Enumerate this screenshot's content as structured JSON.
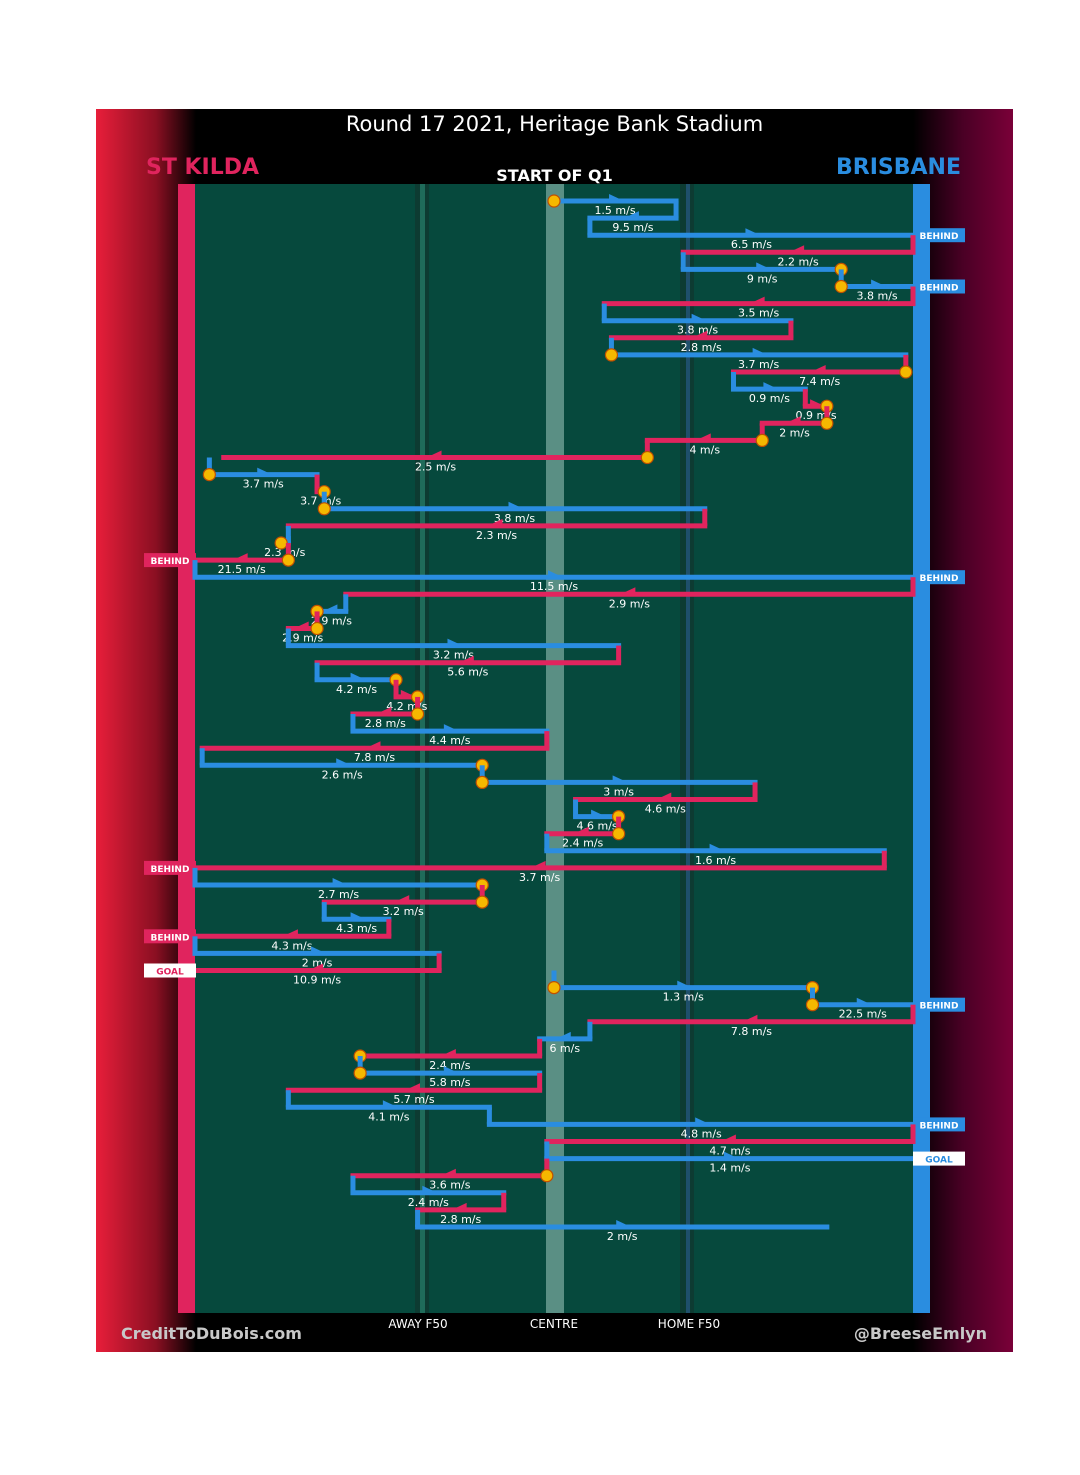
{
  "title": "Round 17 2021, Heritage Bank Stadium",
  "teams": {
    "left": "ST KILDA",
    "right": "BRISBANE"
  },
  "start_label": "START OF Q1",
  "credits": {
    "left": "CreditToDuBois.com",
    "right": "@BreeseEmlyn"
  },
  "colors": {
    "st_kilda": "#e0245e",
    "brisbane": "#2a8de0",
    "field": "#06493d",
    "stoppage": "#f5b800"
  },
  "chart_data": {
    "type": "line",
    "x_axis": {
      "ticks": [
        "AWAY F50",
        "CENTRE",
        "HOME F50"
      ]
    },
    "chains": [
      {
        "team": "brisbane",
        "from": 0.5,
        "to": 0.67,
        "speed": "1.5 m/s",
        "stoppage": "start"
      },
      {
        "team": "brisbane",
        "from": 0.67,
        "to": 0.55,
        "speed": "9.5 m/s"
      },
      {
        "team": "brisbane",
        "from": 0.55,
        "to": 1.0,
        "speed": "6.5 m/s",
        "end": "BEHIND"
      },
      {
        "team": "st_kilda",
        "from": 1.0,
        "to": 0.68,
        "speed": "2.2 m/s"
      },
      {
        "team": "brisbane",
        "from": 0.68,
        "to": 0.9,
        "speed": "9 m/s",
        "stoppage": "end"
      },
      {
        "team": "brisbane",
        "from": 0.9,
        "to": 1.0,
        "speed": "3.8 m/s",
        "stoppage": "start",
        "end": "BEHIND"
      },
      {
        "team": "st_kilda",
        "from": 1.0,
        "to": 0.57,
        "speed": "3.5 m/s"
      },
      {
        "team": "brisbane",
        "from": 0.57,
        "to": 0.83,
        "speed": "3.8 m/s"
      },
      {
        "team": "st_kilda",
        "from": 0.83,
        "to": 0.58,
        "speed": "2.8 m/s"
      },
      {
        "team": "brisbane",
        "from": 0.58,
        "to": 0.99,
        "speed": "3.7 m/s",
        "stoppage": "start"
      },
      {
        "team": "st_kilda",
        "from": 0.99,
        "to": 0.75,
        "speed": "7.4 m/s",
        "stoppage": "start"
      },
      {
        "team": "brisbane",
        "from": 0.75,
        "to": 0.85,
        "speed": "0.9 m/s"
      },
      {
        "team": "st_kilda",
        "from": 0.85,
        "to": 0.88,
        "speed": "0.9 m/s",
        "stoppage": "end"
      },
      {
        "team": "st_kilda",
        "from": 0.88,
        "to": 0.79,
        "speed": "2 m/s",
        "stoppage": "start"
      },
      {
        "team": "st_kilda",
        "from": 0.79,
        "to": 0.63,
        "speed": "4 m/s",
        "stoppage": "start"
      },
      {
        "team": "st_kilda",
        "from": 0.63,
        "to": 0.04,
        "speed": "2.5 m/s",
        "stoppage": "start"
      },
      {
        "team": "brisbane",
        "from": 0.02,
        "to": 0.17,
        "speed": "3.7 m/s",
        "stoppage": "start"
      },
      {
        "team": "st_kilda",
        "from": 0.17,
        "to": 0.18,
        "speed": "3.7 m/s",
        "stoppage": "end"
      },
      {
        "team": "brisbane",
        "from": 0.18,
        "to": 0.71,
        "speed": "3.8 m/s",
        "stoppage": "start"
      },
      {
        "team": "st_kilda",
        "from": 0.71,
        "to": 0.13,
        "speed": "2.3 m/s"
      },
      {
        "team": "brisbane",
        "from": 0.13,
        "to": 0.12,
        "speed": "2.3 m/s",
        "stoppage": "end"
      },
      {
        "team": "st_kilda",
        "from": 0.13,
        "to": 0.0,
        "speed": "21.5 m/s",
        "stoppage": "start",
        "end": "BEHIND"
      },
      {
        "team": "brisbane",
        "from": 0.0,
        "to": 1.0,
        "speed": "11.5 m/s",
        "end": "BEHIND"
      },
      {
        "team": "st_kilda",
        "from": 1.0,
        "to": 0.21,
        "speed": "2.9 m/s"
      },
      {
        "team": "brisbane",
        "from": 0.21,
        "to": 0.17,
        "speed": "2.9 m/s",
        "stoppage": "end"
      },
      {
        "team": "st_kilda",
        "from": 0.17,
        "to": 0.13,
        "speed": "2.9 m/s",
        "stoppage": "start"
      },
      {
        "team": "brisbane",
        "from": 0.13,
        "to": 0.59,
        "speed": "3.2 m/s"
      },
      {
        "team": "st_kilda",
        "from": 0.59,
        "to": 0.17,
        "speed": "5.6 m/s"
      },
      {
        "team": "brisbane",
        "from": 0.17,
        "to": 0.28,
        "speed": "4.2 m/s",
        "stoppage": "end"
      },
      {
        "team": "st_kilda",
        "from": 0.28,
        "to": 0.31,
        "speed": "4.2 m/s",
        "stoppage": "end"
      },
      {
        "team": "st_kilda",
        "from": 0.31,
        "to": 0.22,
        "speed": "2.8 m/s",
        "stoppage": "start"
      },
      {
        "team": "brisbane",
        "from": 0.22,
        "to": 0.49,
        "speed": "4.4 m/s"
      },
      {
        "team": "st_kilda",
        "from": 0.49,
        "to": 0.01,
        "speed": "7.8 m/s"
      },
      {
        "team": "brisbane",
        "from": 0.01,
        "to": 0.4,
        "speed": "2.6 m/s",
        "stoppage": "end"
      },
      {
        "team": "brisbane",
        "from": 0.4,
        "to": 0.78,
        "speed": "3 m/s",
        "stoppage": "start"
      },
      {
        "team": "st_kilda",
        "from": 0.78,
        "to": 0.53,
        "speed": "4.6 m/s"
      },
      {
        "team": "brisbane",
        "from": 0.53,
        "to": 0.59,
        "speed": "4.6 m/s",
        "stoppage": "end"
      },
      {
        "team": "st_kilda",
        "from": 0.59,
        "to": 0.49,
        "speed": "2.4 m/s",
        "stoppage": "start"
      },
      {
        "team": "brisbane",
        "from": 0.49,
        "to": 0.96,
        "speed": "1.6 m/s"
      },
      {
        "team": "st_kilda",
        "from": 0.96,
        "to": 0.0,
        "speed": "3.7 m/s",
        "end": "BEHIND"
      },
      {
        "team": "brisbane",
        "from": 0.0,
        "to": 0.4,
        "speed": "2.7 m/s",
        "stoppage": "end"
      },
      {
        "team": "st_kilda",
        "from": 0.4,
        "to": 0.18,
        "speed": "3.2 m/s",
        "stoppage": "start"
      },
      {
        "team": "brisbane",
        "from": 0.18,
        "to": 0.27,
        "speed": "4.3 m/s"
      },
      {
        "team": "st_kilda",
        "from": 0.27,
        "to": 0.0,
        "speed": "4.3 m/s",
        "end": "BEHIND"
      },
      {
        "team": "brisbane",
        "from": 0.0,
        "to": 0.34,
        "speed": "2 m/s"
      },
      {
        "team": "st_kilda",
        "from": 0.34,
        "to": 0.0,
        "speed": "10.9 m/s",
        "end": "GOAL"
      },
      {
        "team": "brisbane",
        "from": 0.5,
        "to": 0.86,
        "speed": "1.3 m/s",
        "stoppage": "both"
      },
      {
        "team": "brisbane",
        "from": 0.86,
        "to": 1.0,
        "speed": "22.5 m/s",
        "stoppage": "start",
        "end": "BEHIND"
      },
      {
        "team": "st_kilda",
        "from": 1.0,
        "to": 0.55,
        "speed": "7.8 m/s"
      },
      {
        "team": "brisbane",
        "from": 0.55,
        "to": 0.48,
        "speed": "6 m/s"
      },
      {
        "team": "st_kilda",
        "from": 0.48,
        "to": 0.23,
        "speed": "2.4 m/s",
        "stoppage": "end"
      },
      {
        "team": "brisbane",
        "from": 0.23,
        "to": 0.48,
        "speed": "5.8 m/s",
        "stoppage": "start"
      },
      {
        "team": "st_kilda",
        "from": 0.48,
        "to": 0.13,
        "speed": "5.7 m/s"
      },
      {
        "team": "brisbane",
        "from": 0.13,
        "to": 0.41,
        "speed": "4.1 m/s"
      },
      {
        "team": "brisbane",
        "from": 0.41,
        "to": 1.0,
        "speed": "4.8 m/s",
        "end": "BEHIND"
      },
      {
        "team": "st_kilda",
        "from": 1.0,
        "to": 0.49,
        "speed": "4.7 m/s"
      },
      {
        "team": "brisbane",
        "from": 0.49,
        "to": 1.0,
        "speed": "1.4 m/s",
        "end": "GOAL"
      },
      {
        "team": "st_kilda",
        "from": 0.49,
        "to": 0.22,
        "speed": "3.6 m/s",
        "stoppage": "start"
      },
      {
        "team": "brisbane",
        "from": 0.22,
        "to": 0.43,
        "speed": "2.4 m/s"
      },
      {
        "team": "st_kilda",
        "from": 0.43,
        "to": 0.31,
        "speed": "2.8 m/s"
      },
      {
        "team": "brisbane",
        "from": 0.31,
        "to": 0.88,
        "speed": "2 m/s"
      }
    ]
  }
}
